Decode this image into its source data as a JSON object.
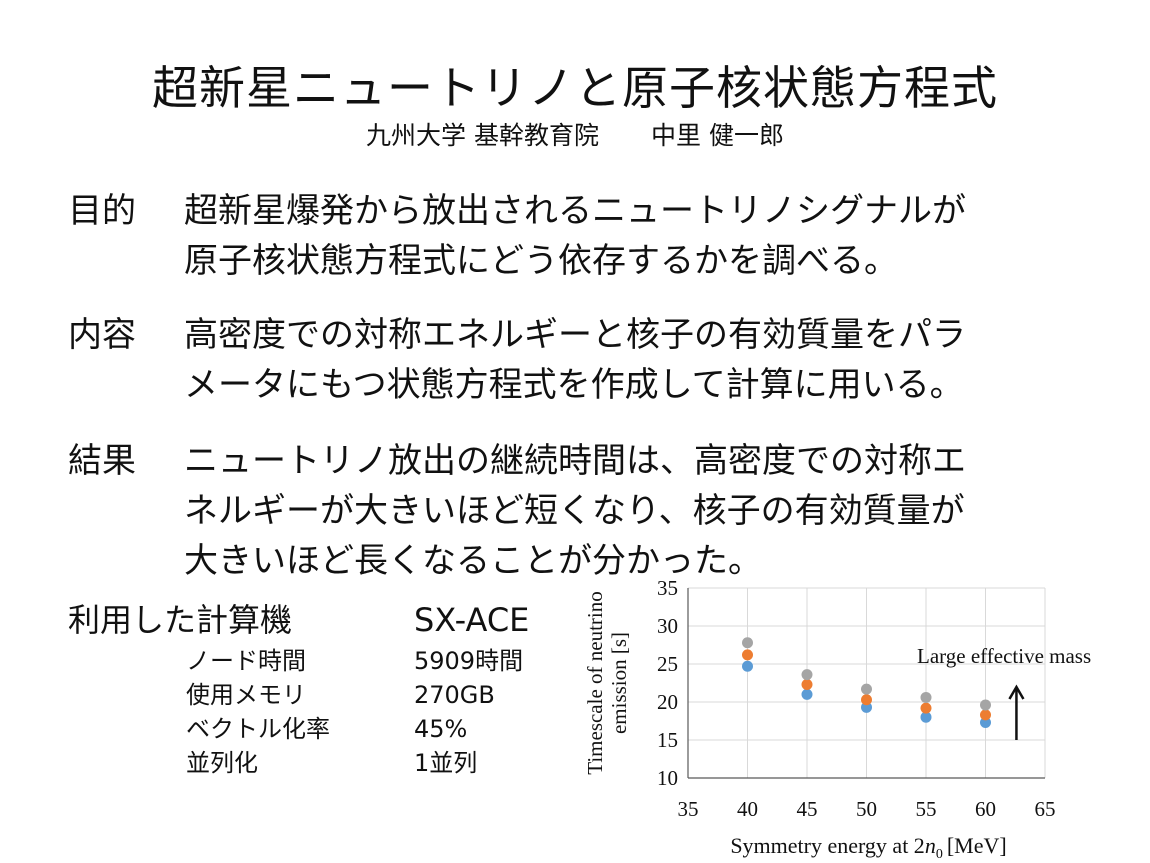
{
  "title": "超新星ニュートリノと原子核状態方程式",
  "affiliation": "九州大学 基幹教育院",
  "author": "中里 健一郎",
  "sections": [
    {
      "label": "目的",
      "lines": [
        "超新星爆発から放出されるニュートリノシグナルが",
        "原子核状態方程式にどう依存するかを調べる。"
      ]
    },
    {
      "label": "内容",
      "lines": [
        "高密度での対称エネルギーと核子の有効質量をパラ",
        "メータにもつ状態方程式を作成して計算に用いる。"
      ]
    },
    {
      "label": "結果",
      "lines": [
        "ニュートリノ放出の継続時間は、高密度での対称エ",
        "ネルギーが大きいほど短くなり、核子の有効質量が",
        "大きいほど長くなることが分かった。"
      ]
    }
  ],
  "computer": {
    "label": "利用した計算機",
    "name": "SX-ACE",
    "rows": [
      {
        "key": "ノード時間",
        "value": "5909時間"
      },
      {
        "key": "使用メモリ",
        "value": "270GB"
      },
      {
        "key": "ベクトル化率",
        "value": "45%"
      },
      {
        "key": "並列化",
        "value": "1並列"
      }
    ]
  },
  "chart_data": {
    "type": "scatter",
    "xlabel_main": "Symmetry energy at 2",
    "xlabel_var": "n",
    "xlabel_sub": "0",
    "xlabel_unit": "[MeV]",
    "ylabel_line1": "Timescale of neutrino",
    "ylabel_line2": "emission [s]",
    "xlim": [
      35,
      65
    ],
    "ylim": [
      10,
      35
    ],
    "xticks": [
      35,
      40,
      45,
      50,
      55,
      60,
      65
    ],
    "yticks": [
      10,
      15,
      20,
      25,
      30,
      35
    ],
    "grid": true,
    "annotation": "Large effective mass",
    "annotation_arrow": "up",
    "series": [
      {
        "color": "#5b9bd5",
        "x": [
          40,
          45,
          50,
          55,
          60
        ],
        "y": [
          24.7,
          21.0,
          19.3,
          18.0,
          17.3
        ]
      },
      {
        "color": "#ed7d31",
        "x": [
          40,
          45,
          50,
          55,
          60
        ],
        "y": [
          26.2,
          22.3,
          20.3,
          19.2,
          18.3
        ]
      },
      {
        "color": "#a5a5a5",
        "x": [
          40,
          45,
          50,
          55,
          60
        ],
        "y": [
          27.8,
          23.6,
          21.7,
          20.6,
          19.6
        ]
      }
    ]
  }
}
